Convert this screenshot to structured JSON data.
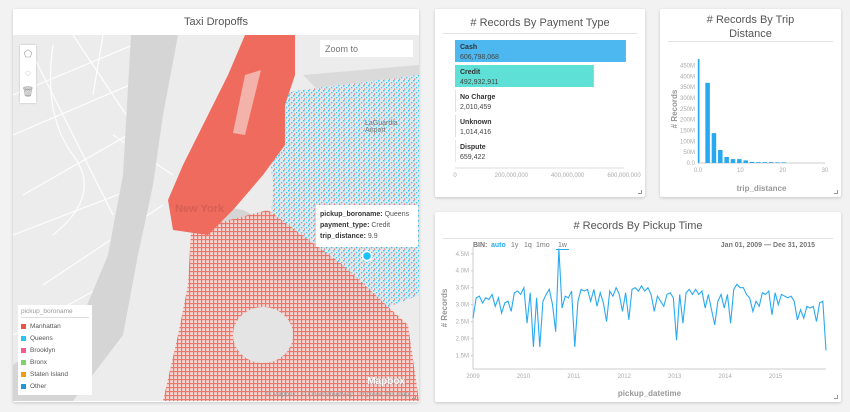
{
  "map_panel": {
    "title": "Taxi Dropoffs",
    "zoom_placeholder": "Zoom to",
    "city_label": "New York",
    "airport_label": "LaGuardia Airport",
    "tools": [
      "polygon-tool",
      "circle-tool",
      "delete-tool"
    ],
    "legend": {
      "title": "pickup_boroname",
      "items": [
        {
          "label": "Manhattan",
          "color": "#ea5545"
        },
        {
          "label": "Queens",
          "color": "#27c5f2"
        },
        {
          "label": "Brooklyn",
          "color": "#f45b8c"
        },
        {
          "label": "Bronx",
          "color": "#7ed26a"
        },
        {
          "label": "Staten Island",
          "color": "#f39c12"
        },
        {
          "label": "Other",
          "color": "#2196d9"
        }
      ]
    },
    "tooltip": {
      "k1": "pickup_boroname:",
      "v1": "Queens",
      "k2": "payment_type:",
      "v2": "Credit",
      "k3": "trip_distance:",
      "v3": "9.9"
    },
    "attribution": {
      "mapbox": "© Mapbox",
      "osm": "© OpenStreetMap",
      "improve": "Improve this map",
      "logo": "Mapbox"
    }
  },
  "payment_panel": {
    "title": "# Records By Payment Type"
  },
  "trip_panel": {
    "title1": "# Records By Trip",
    "title2": "Distance"
  },
  "time_panel": {
    "title": "# Records By Pickup Time",
    "bin_label": "BIN:",
    "bins": [
      "auto",
      "1y",
      "1q",
      "1mo",
      "1w"
    ],
    "active_bin": "1w",
    "date_start": "Jan 01, 2009",
    "date_sep": "—",
    "date_end": "Dec 31, 2015"
  },
  "chart_data": [
    {
      "type": "bar",
      "orientation": "horizontal",
      "title": "# Records By Payment Type",
      "categories": [
        "Cash",
        "Credit",
        "No Charge",
        "Unknown",
        "Dispute"
      ],
      "values": [
        606798068,
        492932911,
        2010459,
        1014416,
        659422
      ],
      "labels": [
        "606,798,068",
        "492,932,911",
        "2,010,459",
        "1,014,416",
        "659,422"
      ],
      "colors": [
        "#4db8f0",
        "#5fe0d6",
        "#e8e8b0",
        "#cfe3f0",
        "#e0e8f0"
      ],
      "xticks": [
        "0",
        "200,000,000",
        "400,000,000",
        "600,000,000"
      ],
      "xlim": [
        0,
        600000000
      ]
    },
    {
      "type": "bar",
      "title": "# Records By Trip Distance",
      "xlabel": "trip_distance",
      "ylabel": "# Records",
      "x": [
        0,
        1.5,
        3,
        4.5,
        6,
        7.5,
        9,
        10.5,
        12,
        13.5,
        15,
        16.5,
        18,
        19.5
      ],
      "values": [
        480,
        370,
        138,
        60,
        28,
        18,
        18,
        12,
        5,
        4,
        4,
        4,
        3,
        3
      ],
      "unit": "M",
      "yticks": [
        "0.0",
        "50M",
        "100M",
        "150M",
        "200M",
        "250M",
        "300M",
        "350M",
        "400M",
        "450M"
      ],
      "xticks": [
        "0.0",
        "10",
        "20",
        "30"
      ],
      "xlim": [
        0,
        30
      ],
      "ylim": [
        0,
        480
      ],
      "color": "#26a9f0"
    },
    {
      "type": "line",
      "title": "# Records By Pickup Time",
      "xlabel": "pickup_datetime",
      "ylabel": "# Records",
      "unit": "M",
      "xlim": [
        2009,
        2016
      ],
      "ylim": [
        1.1,
        4.7
      ],
      "yticks": [
        "1.5M",
        "2.0M",
        "2.5M",
        "3.0M",
        "3.5M",
        "4.0M",
        "4.5M"
      ],
      "xticks": [
        "2009",
        "2010",
        "2011",
        "2012",
        "2013",
        "2014",
        "2015"
      ],
      "color": "#29aaf0",
      "values": [
        2.6,
        3.2,
        3.25,
        3.05,
        3.2,
        3.15,
        3.3,
        2.95,
        3.2,
        2.75,
        3.05,
        3.1,
        2.8,
        3.35,
        3.4,
        3.3,
        3.5,
        2.45,
        3.35,
        1.75,
        3.2,
        1.75,
        3.1,
        3.3,
        3.45,
        3.0,
        2.2,
        4.65,
        2.9,
        3.25,
        3.2,
        3.4,
        1.75,
        3.1,
        3.45,
        3.4,
        3.45,
        3.1,
        3.45,
        2.95,
        3.35,
        3.05,
        2.5,
        3.4,
        3.25,
        3.5,
        3.3,
        2.8,
        3.35,
        2.55,
        3.45,
        3.5,
        3.4,
        3.55,
        3.4,
        3.5,
        3.3,
        2.8,
        3.25,
        3.1,
        2.95,
        3.3,
        3.35,
        3.2,
        1.95,
        3.3,
        2.45,
        3.35,
        3.45,
        3.3,
        3.45,
        3.3,
        3.4,
        2.9,
        3.3,
        2.85,
        2.4,
        3.1,
        3.3,
        2.9,
        3.3,
        2.45,
        3.45,
        3.6,
        3.5,
        3.5,
        3.3,
        3.2,
        2.8,
        3.1,
        2.95,
        3.35,
        3.3,
        3.4,
        2.7,
        3.35,
        3.0,
        3.3,
        3.25,
        3.2,
        3.25,
        3.1,
        2.55,
        2.85,
        2.6,
        2.95,
        2.9,
        2.95,
        2.5,
        3.05,
        3.1,
        1.65
      ]
    }
  ]
}
